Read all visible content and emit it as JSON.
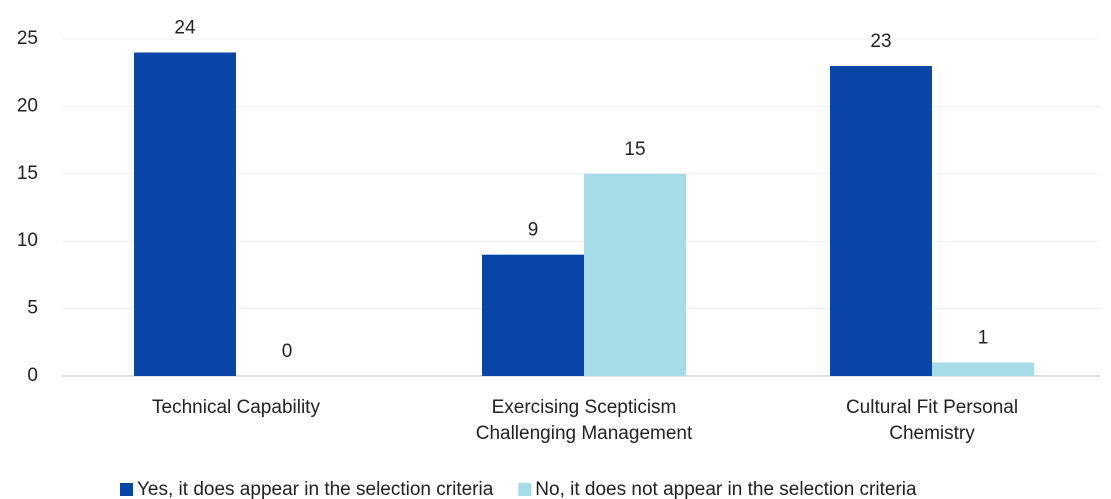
{
  "chart_data": {
    "type": "bar",
    "categories": [
      [
        "Technical Capability"
      ],
      [
        "Exercising Scepticism",
        "Challenging Management"
      ],
      [
        "Cultural Fit Personal",
        "Chemistry"
      ]
    ],
    "series": [
      {
        "name": "Yes, it does appear in the selection criteria",
        "color": "#0a46a8",
        "values": [
          24,
          9,
          23
        ]
      },
      {
        "name": "No, it does not appear in the selection criteria",
        "color": "#a6dce8",
        "values": [
          0,
          15,
          1
        ]
      }
    ],
    "ylim": [
      0,
      25
    ],
    "yticks": [
      0,
      5,
      10,
      15,
      20,
      25
    ],
    "grid": true
  }
}
